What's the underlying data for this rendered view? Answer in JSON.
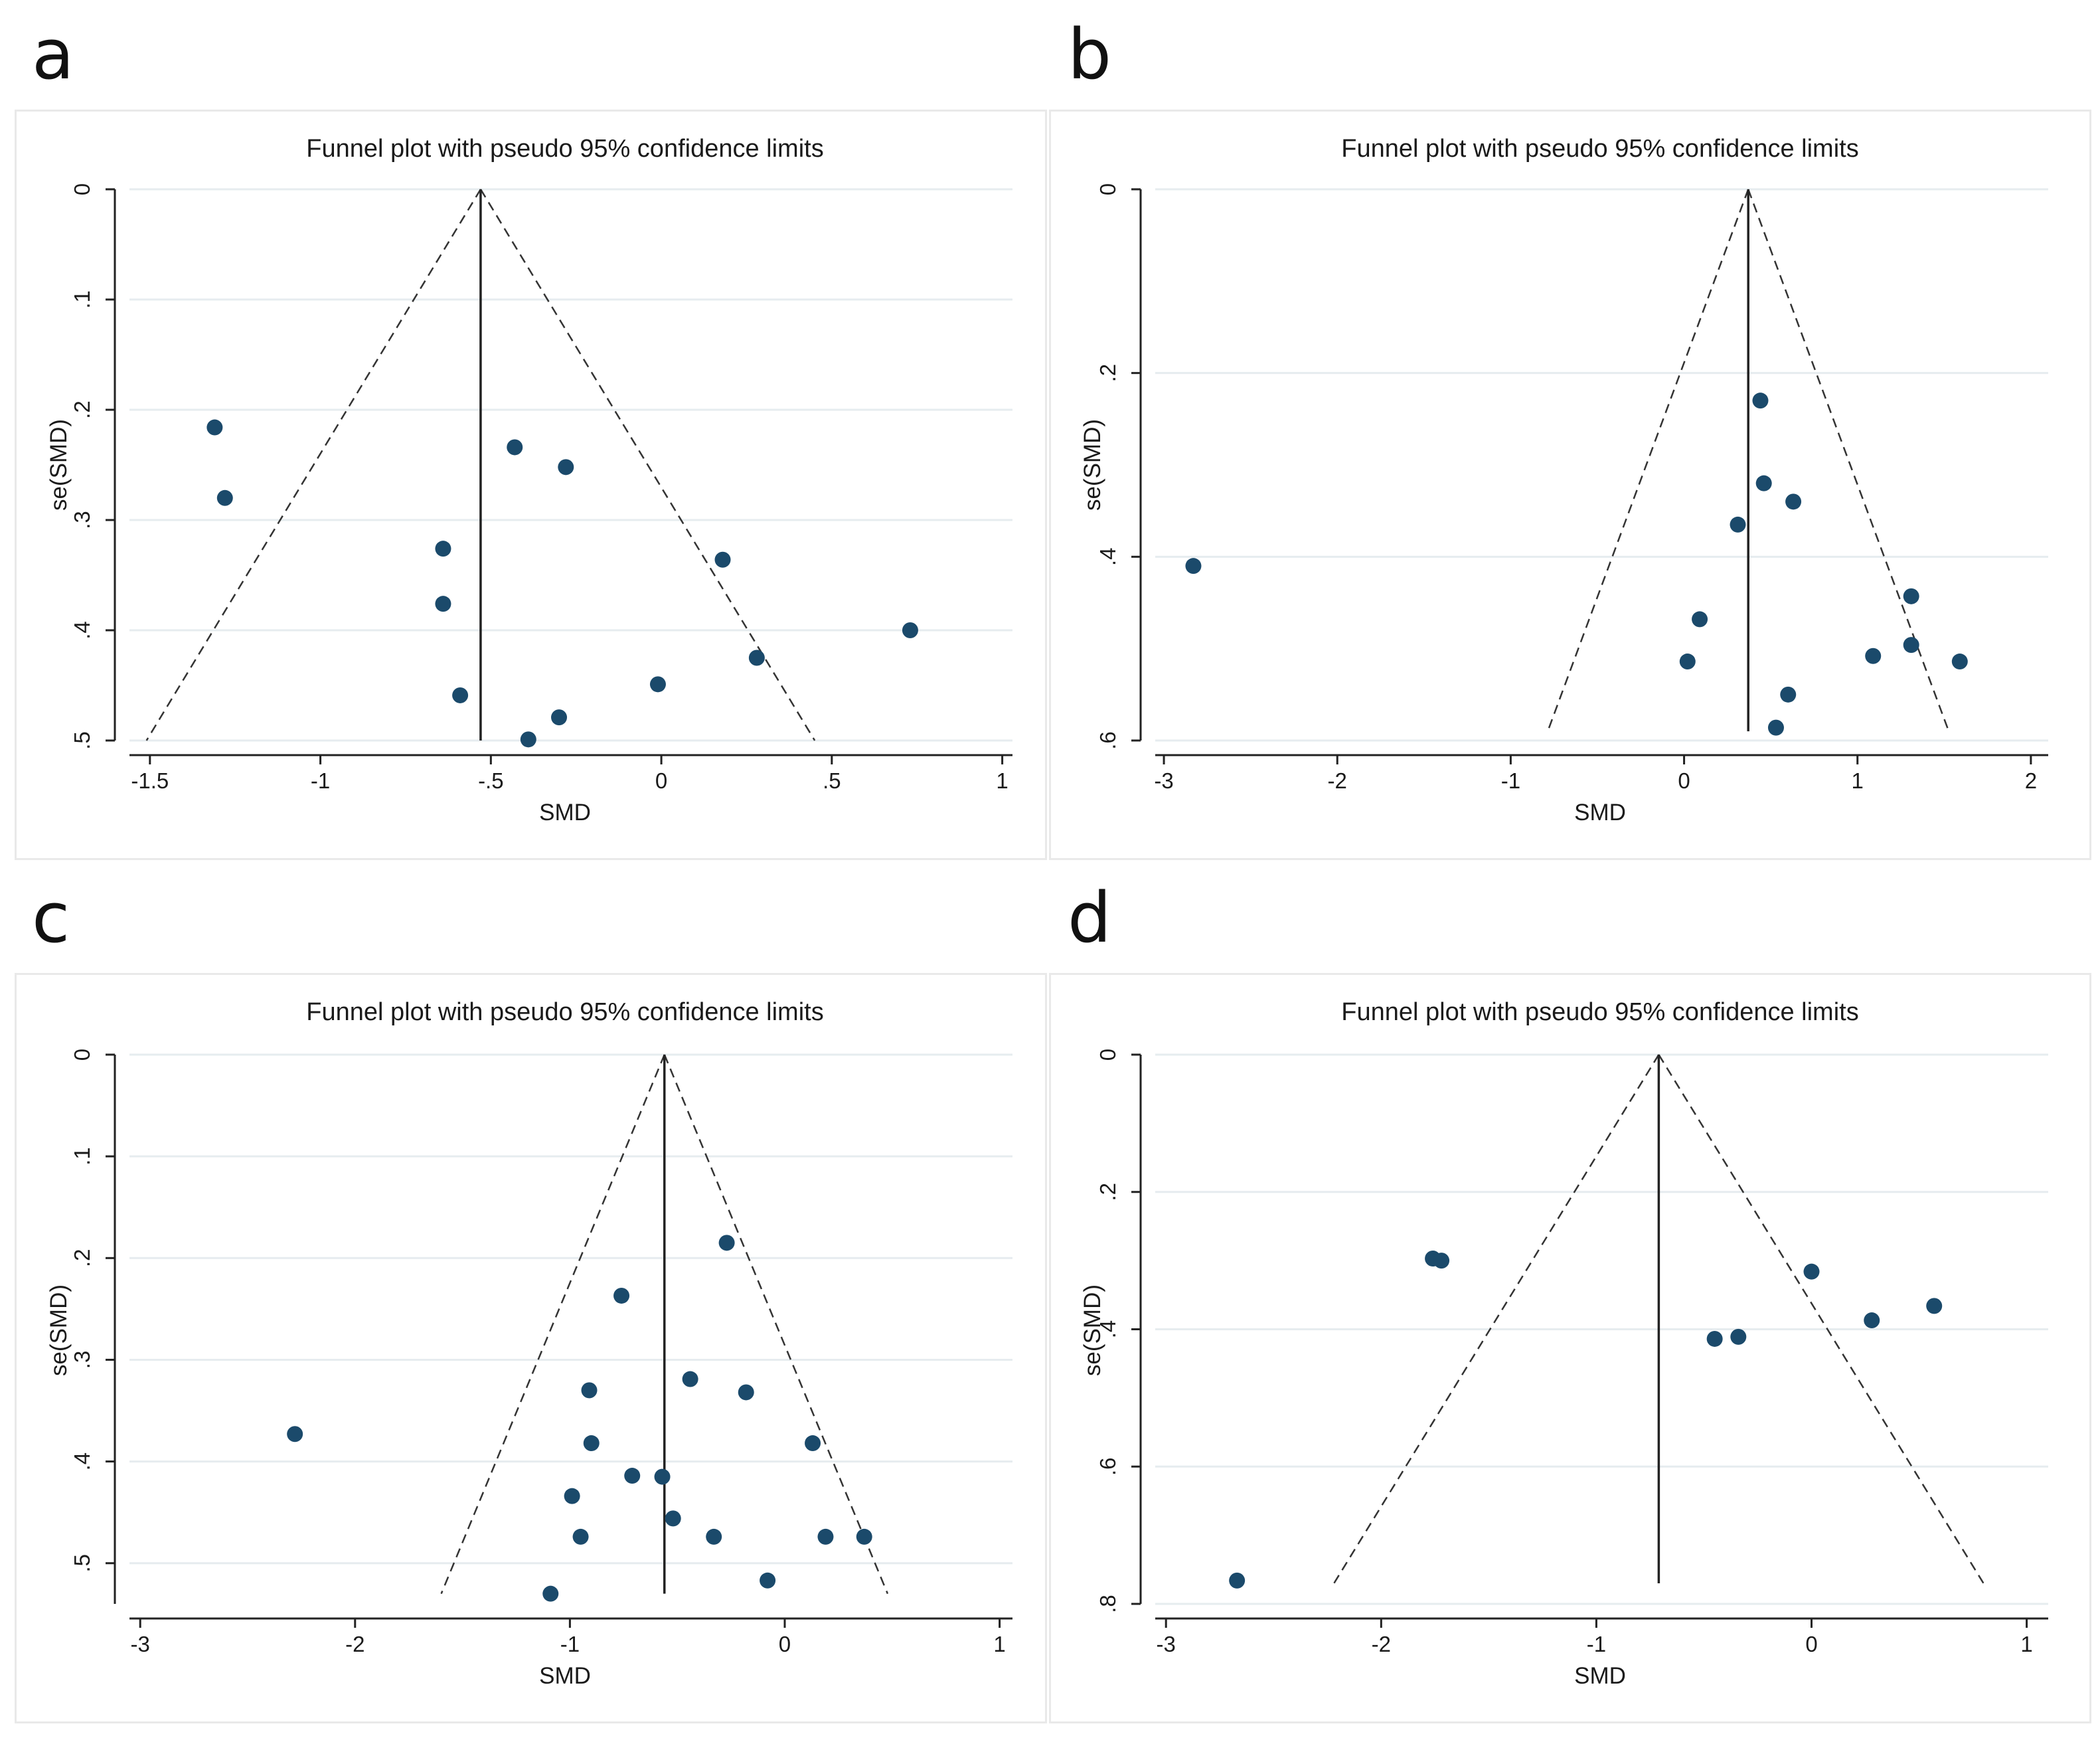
{
  "panels": [
    {
      "letter": "a"
    },
    {
      "letter": "b"
    },
    {
      "letter": "c"
    },
    {
      "letter": "d"
    }
  ],
  "chart_data": [
    {
      "type": "scatter",
      "panel": "a",
      "title": "Funnel plot with pseudo 95% confidence limits",
      "xlabel": "SMD",
      "ylabel": "se(SMD)",
      "xlim": [
        -1.56,
        1.03
      ],
      "ylim": [
        0,
        0.5
      ],
      "y_inverted": true,
      "x_ticks": [
        -1.5,
        -1,
        -0.5,
        0,
        0.5,
        1
      ],
      "x_tick_labels": [
        "-1.5",
        "-1",
        "-.5",
        "0",
        ".5",
        "1"
      ],
      "y_ticks": [
        0,
        0.1,
        0.2,
        0.3,
        0.4,
        0.5
      ],
      "y_tick_labels": [
        "0",
        ".1",
        ".2",
        ".3",
        ".4",
        ".5"
      ],
      "pooled_effect": -0.53,
      "funnel_se_max": 0.5,
      "vline_se_max": 0.5,
      "points": [
        {
          "x": -1.31,
          "y": 0.216
        },
        {
          "x": -1.28,
          "y": 0.28
        },
        {
          "x": -0.43,
          "y": 0.234
        },
        {
          "x": -0.28,
          "y": 0.252
        },
        {
          "x": -0.64,
          "y": 0.326
        },
        {
          "x": 0.18,
          "y": 0.336
        },
        {
          "x": -0.64,
          "y": 0.376
        },
        {
          "x": 0.73,
          "y": 0.4
        },
        {
          "x": 0.28,
          "y": 0.425
        },
        {
          "x": -0.01,
          "y": 0.449
        },
        {
          "x": -0.59,
          "y": 0.459
        },
        {
          "x": -0.3,
          "y": 0.479
        },
        {
          "x": -0.39,
          "y": 0.499
        }
      ]
    },
    {
      "type": "scatter",
      "panel": "b",
      "title": "Funnel plot with pseudo 95% confidence limits",
      "xlabel": "SMD",
      "ylabel": "se(SMD)",
      "xlim": [
        -3.05,
        2.1
      ],
      "ylim": [
        0,
        0.6
      ],
      "y_inverted": true,
      "x_ticks": [
        -3,
        -2,
        -1,
        0,
        1,
        2
      ],
      "x_tick_labels": [
        "-3",
        "-2",
        "-1",
        "0",
        "1",
        "2"
      ],
      "y_ticks": [
        0,
        0.2,
        0.4,
        0.6
      ],
      "y_tick_labels": [
        "0",
        ".2",
        ".4",
        ".6"
      ],
      "pooled_effect": 0.37,
      "funnel_se_max": 0.59,
      "vline_se_max": 0.59,
      "points": [
        {
          "x": -2.83,
          "y": 0.41
        },
        {
          "x": 0.44,
          "y": 0.23
        },
        {
          "x": 0.46,
          "y": 0.32
        },
        {
          "x": 0.63,
          "y": 0.34
        },
        {
          "x": 0.31,
          "y": 0.365
        },
        {
          "x": 1.31,
          "y": 0.443
        },
        {
          "x": 0.09,
          "y": 0.468
        },
        {
          "x": 1.31,
          "y": 0.496
        },
        {
          "x": 1.09,
          "y": 0.508
        },
        {
          "x": 0.02,
          "y": 0.514
        },
        {
          "x": 1.59,
          "y": 0.514
        },
        {
          "x": 0.6,
          "y": 0.55
        },
        {
          "x": 0.53,
          "y": 0.586
        }
      ]
    },
    {
      "type": "scatter",
      "panel": "c",
      "title": "Funnel plot with pseudo 95% confidence limits",
      "xlabel": "SMD",
      "ylabel": "se(SMD)",
      "xlim": [
        -3.05,
        1.06
      ],
      "ylim": [
        0,
        0.54
      ],
      "y_inverted": true,
      "x_ticks": [
        -3,
        -2,
        -1,
        0,
        1
      ],
      "x_tick_labels": [
        "-3",
        "-2",
        "-1",
        "0",
        "1"
      ],
      "y_ticks": [
        0,
        0.1,
        0.2,
        0.3,
        0.4,
        0.5
      ],
      "y_tick_labels": [
        "0",
        ".1",
        ".2",
        ".3",
        ".4",
        ".5"
      ],
      "pooled_effect": -0.56,
      "funnel_se_max": 0.53,
      "vline_se_max": 0.53,
      "points": [
        {
          "x": -0.27,
          "y": 0.185
        },
        {
          "x": -0.76,
          "y": 0.237
        },
        {
          "x": -0.44,
          "y": 0.319
        },
        {
          "x": -0.91,
          "y": 0.33
        },
        {
          "x": -0.18,
          "y": 0.332
        },
        {
          "x": -2.28,
          "y": 0.373
        },
        {
          "x": -0.9,
          "y": 0.382
        },
        {
          "x": 0.13,
          "y": 0.382
        },
        {
          "x": -0.71,
          "y": 0.414
        },
        {
          "x": -0.57,
          "y": 0.415
        },
        {
          "x": -0.99,
          "y": 0.434
        },
        {
          "x": -0.52,
          "y": 0.456
        },
        {
          "x": -0.95,
          "y": 0.474
        },
        {
          "x": -0.33,
          "y": 0.474
        },
        {
          "x": 0.19,
          "y": 0.474
        },
        {
          "x": 0.37,
          "y": 0.474
        },
        {
          "x": -0.08,
          "y": 0.517
        },
        {
          "x": -1.09,
          "y": 0.53
        }
      ]
    },
    {
      "type": "scatter",
      "panel": "d",
      "title": "Funnel plot with pseudo 95% confidence limits",
      "xlabel": "SMD",
      "ylabel": "se(SMD)",
      "xlim": [
        -3.05,
        1.1
      ],
      "ylim": [
        0,
        0.8
      ],
      "y_inverted": true,
      "x_ticks": [
        -3,
        -2,
        -1,
        0,
        1
      ],
      "x_tick_labels": [
        "-3",
        "-2",
        "-1",
        "0",
        "1"
      ],
      "y_ticks": [
        0,
        0.2,
        0.4,
        0.6,
        0.8
      ],
      "y_tick_labels": [
        "0",
        ".2",
        ".4",
        ".6",
        ".8"
      ],
      "pooled_effect": -0.71,
      "funnel_se_max": 0.77,
      "vline_se_max": 0.77,
      "points": [
        {
          "x": -1.76,
          "y": 0.297
        },
        {
          "x": -1.72,
          "y": 0.3
        },
        {
          "x": 0.0,
          "y": 0.316
        },
        {
          "x": 0.57,
          "y": 0.366
        },
        {
          "x": 0.28,
          "y": 0.387
        },
        {
          "x": -0.34,
          "y": 0.411
        },
        {
          "x": -0.45,
          "y": 0.414
        },
        {
          "x": -2.67,
          "y": 0.766
        }
      ]
    }
  ]
}
